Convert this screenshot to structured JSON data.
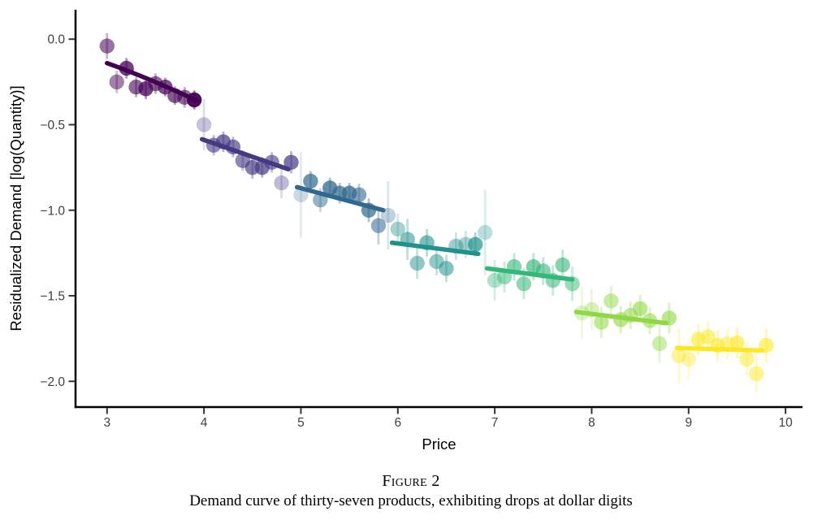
{
  "figure": {
    "number_label": "Figure 2",
    "caption": "Demand curve of thirty-seven products, exhibiting drops at dollar digits"
  },
  "chart_data": {
    "type": "scatter",
    "title": "",
    "xlabel": "Price",
    "ylabel": "Residualized Demand [log(Quantity)]",
    "xlim": [
      2.675,
      10.175
    ],
    "ylim": [
      -2.1505,
      0.1719
    ],
    "grid": false,
    "legend": "none",
    "background": "#ffffff",
    "axis_color": "#000000",
    "tick_label_color": "#404040",
    "xticks": [
      3,
      4,
      5,
      6,
      7,
      8,
      9,
      10
    ],
    "xtick_labels": [
      "3",
      "4",
      "5",
      "6",
      "7",
      "8",
      "9",
      "10"
    ],
    "yticks": [
      0.0,
      -0.5,
      -1.0,
      -1.5,
      -2.0
    ],
    "ytick_labels": [
      "0.0",
      "−0.5",
      "−1.0",
      "−1.5",
      "−2.0"
    ],
    "point_format": [
      "price",
      "value",
      "err_half_length",
      "alpha"
    ],
    "series": [
      {
        "name": "dollar-range-3",
        "color": "#440154",
        "fit": {
          "x1": 3.0,
          "y1": -0.14,
          "cx": 3.42,
          "cy": -0.225,
          "x2": 3.93,
          "y2": -0.36
        },
        "points": [
          [
            3.0,
            -0.04,
            0.075,
            0.55
          ],
          [
            3.1,
            -0.25,
            0.065,
            0.5
          ],
          [
            3.2,
            -0.17,
            0.06,
            0.75
          ],
          [
            3.3,
            -0.28,
            0.06,
            0.6
          ],
          [
            3.4,
            -0.29,
            0.06,
            0.75
          ],
          [
            3.5,
            -0.26,
            0.06,
            0.6
          ],
          [
            3.6,
            -0.28,
            0.055,
            0.7
          ],
          [
            3.7,
            -0.33,
            0.055,
            0.65
          ],
          [
            3.8,
            -0.34,
            0.06,
            0.6
          ],
          [
            3.9,
            -0.355,
            0.055,
            0.95
          ]
        ]
      },
      {
        "name": "dollar-range-4",
        "color": "#443983",
        "fit": {
          "x1": 3.98,
          "y1": -0.585,
          "x2": 4.87,
          "y2": -0.76
        },
        "points": [
          [
            4.0,
            -0.5,
            0.15,
            0.3
          ],
          [
            4.1,
            -0.62,
            0.06,
            0.6
          ],
          [
            4.2,
            -0.6,
            0.06,
            0.7
          ],
          [
            4.3,
            -0.63,
            0.06,
            0.65
          ],
          [
            4.4,
            -0.71,
            0.06,
            0.6
          ],
          [
            4.5,
            -0.75,
            0.065,
            0.65
          ],
          [
            4.6,
            -0.75,
            0.06,
            0.7
          ],
          [
            4.7,
            -0.72,
            0.06,
            0.6
          ],
          [
            4.8,
            -0.84,
            0.09,
            0.35
          ],
          [
            4.9,
            -0.72,
            0.065,
            0.7
          ]
        ]
      },
      {
        "name": "dollar-range-5",
        "color": "#31688e",
        "fit": {
          "x1": 4.96,
          "y1": -0.865,
          "x2": 5.85,
          "y2": -1.0
        },
        "points": [
          [
            5.0,
            -0.91,
            0.25,
            0.25
          ],
          [
            5.1,
            -0.83,
            0.06,
            0.7
          ],
          [
            5.2,
            -0.94,
            0.07,
            0.5
          ],
          [
            5.3,
            -0.87,
            0.06,
            0.75
          ],
          [
            5.4,
            -0.9,
            0.06,
            0.7
          ],
          [
            5.5,
            -0.9,
            0.06,
            0.75
          ],
          [
            5.6,
            -0.91,
            0.065,
            0.6
          ],
          [
            5.7,
            -1.0,
            0.07,
            0.7
          ],
          [
            5.8,
            -1.09,
            0.11,
            0.55
          ],
          [
            5.9,
            -1.03,
            0.2,
            0.3
          ]
        ]
      },
      {
        "name": "dollar-range-6",
        "color": "#21918c",
        "fit": {
          "x1": 5.94,
          "y1": -1.19,
          "x2": 6.83,
          "y2": -1.255
        },
        "points": [
          [
            6.0,
            -1.11,
            0.09,
            0.4
          ],
          [
            6.1,
            -1.17,
            0.12,
            0.55
          ],
          [
            6.2,
            -1.31,
            0.09,
            0.5
          ],
          [
            6.3,
            -1.19,
            0.08,
            0.6
          ],
          [
            6.4,
            -1.3,
            0.08,
            0.5
          ],
          [
            6.5,
            -1.34,
            0.08,
            0.55
          ],
          [
            6.6,
            -1.21,
            0.08,
            0.45
          ],
          [
            6.7,
            -1.2,
            0.08,
            0.4
          ],
          [
            6.8,
            -1.2,
            0.07,
            0.7
          ],
          [
            6.9,
            -1.13,
            0.25,
            0.3
          ]
        ]
      },
      {
        "name": "dollar-range-7",
        "color": "#35b779",
        "fit": {
          "x1": 6.92,
          "y1": -1.34,
          "x2": 7.8,
          "y2": -1.405
        },
        "points": [
          [
            7.0,
            -1.41,
            0.12,
            0.4
          ],
          [
            7.1,
            -1.39,
            0.09,
            0.5
          ],
          [
            7.2,
            -1.33,
            0.08,
            0.6
          ],
          [
            7.3,
            -1.43,
            0.09,
            0.55
          ],
          [
            7.4,
            -1.33,
            0.08,
            0.65
          ],
          [
            7.5,
            -1.355,
            0.08,
            0.6
          ],
          [
            7.6,
            -1.41,
            0.09,
            0.55
          ],
          [
            7.7,
            -1.32,
            0.09,
            0.6
          ],
          [
            7.8,
            -1.43,
            0.1,
            0.5
          ]
        ]
      },
      {
        "name": "dollar-range-8",
        "color": "#90d743",
        "fit": {
          "x1": 7.84,
          "y1": -1.595,
          "x2": 8.77,
          "y2": -1.66
        },
        "points": [
          [
            7.9,
            -1.6,
            0.15,
            0.3
          ],
          [
            8.0,
            -1.58,
            0.12,
            0.35
          ],
          [
            8.1,
            -1.655,
            0.09,
            0.55
          ],
          [
            8.2,
            -1.53,
            0.09,
            0.5
          ],
          [
            8.3,
            -1.64,
            0.08,
            0.6
          ],
          [
            8.4,
            -1.615,
            0.08,
            0.55
          ],
          [
            8.5,
            -1.575,
            0.08,
            0.6
          ],
          [
            8.6,
            -1.645,
            0.08,
            0.55
          ],
          [
            8.7,
            -1.78,
            0.11,
            0.45
          ],
          [
            8.8,
            -1.63,
            0.09,
            0.6
          ]
        ]
      },
      {
        "name": "dollar-range-9",
        "color": "#fde725",
        "fit": {
          "x1": 8.88,
          "y1": -1.805,
          "x2": 9.76,
          "y2": -1.82
        },
        "points": [
          [
            8.9,
            -1.85,
            0.16,
            0.45
          ],
          [
            9.0,
            -1.87,
            0.12,
            0.4
          ],
          [
            9.1,
            -1.755,
            0.09,
            0.6
          ],
          [
            9.2,
            -1.74,
            0.09,
            0.55
          ],
          [
            9.3,
            -1.79,
            0.09,
            0.6
          ],
          [
            9.4,
            -1.78,
            0.09,
            0.45
          ],
          [
            9.5,
            -1.775,
            0.09,
            0.6
          ],
          [
            9.6,
            -1.87,
            0.1,
            0.5
          ],
          [
            9.7,
            -1.955,
            0.11,
            0.5
          ],
          [
            9.8,
            -1.79,
            0.1,
            0.6
          ]
        ]
      }
    ]
  }
}
